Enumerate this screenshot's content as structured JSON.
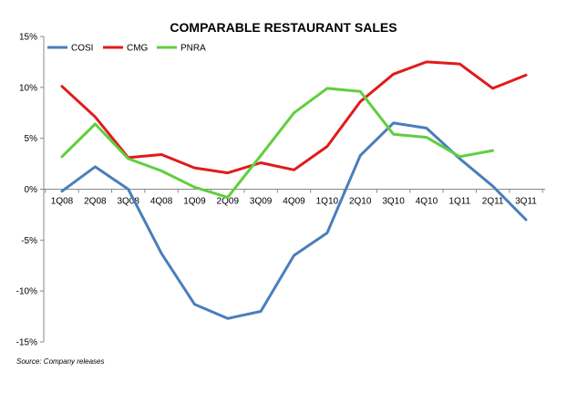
{
  "chart_data": {
    "type": "line",
    "title": "COMPARABLE RESTAURANT SALES",
    "categories": [
      "1Q08",
      "2Q08",
      "3Q08",
      "4Q08",
      "1Q09",
      "2Q09",
      "3Q09",
      "4Q09",
      "1Q10",
      "2Q10",
      "3Q10",
      "4Q10",
      "1Q11",
      "2Q11",
      "3Q11"
    ],
    "series": [
      {
        "name": "COSI",
        "color": "#4a7ebb",
        "values": [
          -0.2,
          2.2,
          0.0,
          -6.3,
          -11.3,
          -12.7,
          -12.0,
          -6.5,
          -4.3,
          3.3,
          6.5,
          6.0,
          3.0,
          0.3,
          -3.0
        ]
      },
      {
        "name": "CMG",
        "color": "#e01b1b",
        "values": [
          10.1,
          7.1,
          3.1,
          3.4,
          2.1,
          1.6,
          2.6,
          1.9,
          4.2,
          8.6,
          11.3,
          12.5,
          12.3,
          9.9,
          11.2
        ]
      },
      {
        "name": "PNRA",
        "color": "#5fcf3f",
        "values": [
          3.2,
          6.4,
          3.0,
          1.8,
          0.2,
          -0.8,
          3.3,
          7.5,
          9.9,
          9.6,
          5.4,
          5.1,
          3.2,
          3.8,
          null
        ]
      }
    ],
    "y_ticks": [
      "15%",
      "10%",
      "5%",
      "0%",
      "-5%",
      "-10%",
      "-15%"
    ],
    "ylim": [
      -15,
      15
    ],
    "legend": "top-left",
    "grid": false,
    "source": "Source: Company releases"
  }
}
